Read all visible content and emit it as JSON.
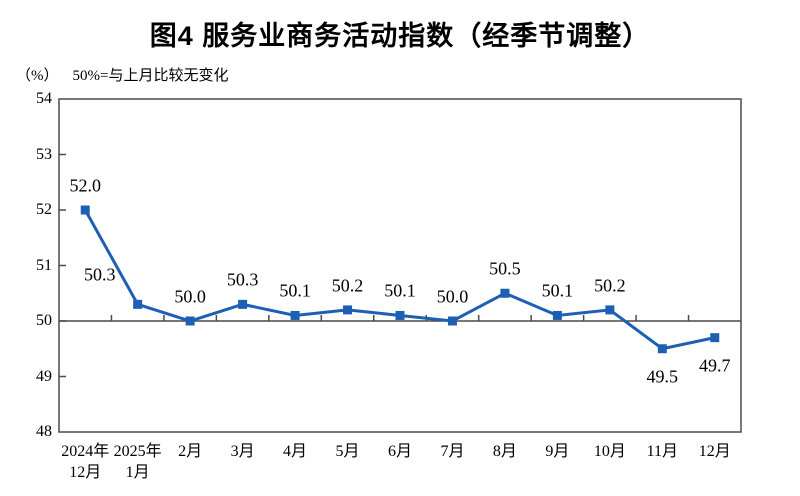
{
  "page": {
    "title": "图4 服务业商务活动指数（经季节调整）",
    "unit_label": "（%）",
    "reference_note": "50%=与上月比较无变化"
  },
  "colors": {
    "line": "#1d5fb4",
    "axis": "#4a4a4a",
    "text": "#000000",
    "background": "#ffffff"
  },
  "chart_data": {
    "type": "line",
    "title": "图4 服务业商务活动指数（经季节调整）",
    "ylabel": "（%）",
    "categories": [
      "2024年\n12月",
      "2025年\n1月",
      "2月",
      "3月",
      "4月",
      "5月",
      "6月",
      "7月",
      "8月",
      "9月",
      "10月",
      "11月",
      "12月"
    ],
    "values": [
      52.0,
      50.3,
      50.0,
      50.3,
      50.1,
      50.2,
      50.1,
      50.0,
      50.5,
      50.1,
      50.2,
      49.5,
      49.7
    ],
    "value_label_decimals": 1,
    "label_placement": [
      "above",
      "above-left",
      "above",
      "above",
      "above",
      "above",
      "above",
      "above",
      "above",
      "above",
      "above",
      "below",
      "below"
    ],
    "ylim": [
      48,
      54
    ],
    "ytick_step": 1,
    "reference_line": 50,
    "grid": false,
    "legend": false,
    "marker": "square"
  }
}
